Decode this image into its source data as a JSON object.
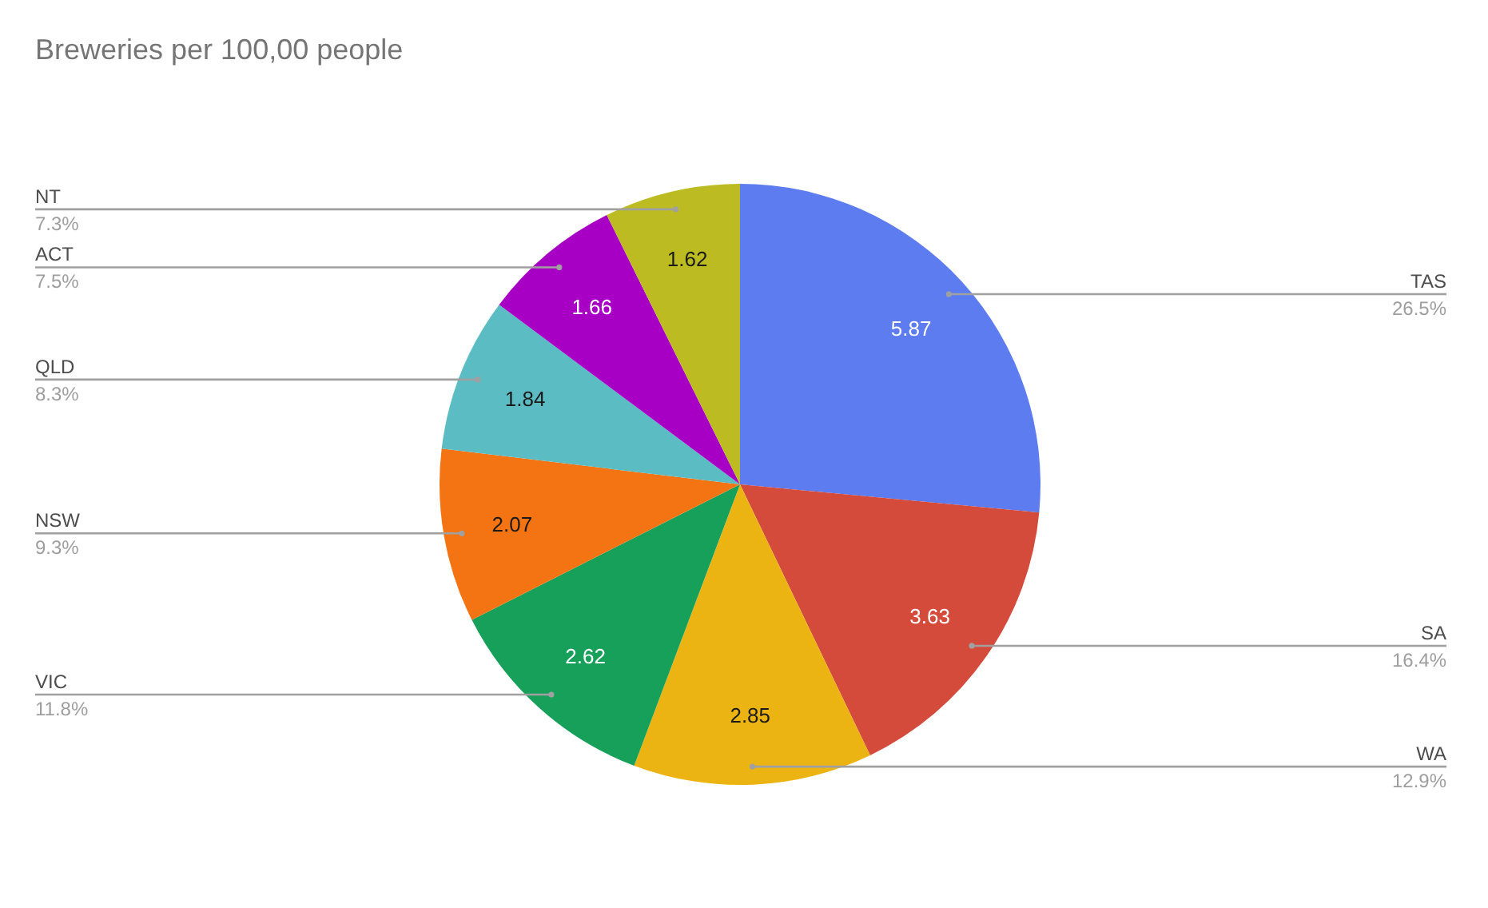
{
  "chart_data": {
    "type": "pie",
    "title": "Breweries per 100,00 people",
    "categories": [
      "TAS",
      "SA",
      "WA",
      "VIC",
      "NSW",
      "QLD",
      "ACT",
      "NT"
    ],
    "values": [
      5.87,
      3.63,
      2.85,
      2.62,
      2.07,
      1.84,
      1.66,
      1.62
    ],
    "colors": [
      "#5c7cef",
      "#d44a3b",
      "#ecb413",
      "#17a05a",
      "#f47413",
      "#5bbcc4",
      "#a700c4",
      "#bcbc22"
    ],
    "data_labels": true,
    "annotations": [
      "26.5%",
      "16.4%",
      "12.9%",
      "11.8%",
      "9.3%",
      "8.3%",
      "7.5%",
      "7.3%"
    ]
  }
}
